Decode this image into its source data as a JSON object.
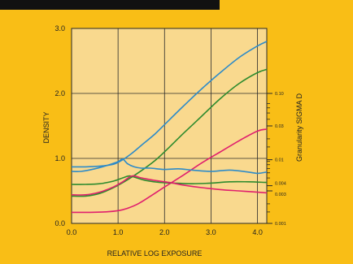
{
  "colors": {
    "panel": "#F9BE16",
    "plot_bg": "#F9D98E",
    "grid": "#2a2a2a",
    "corner": "#111111",
    "blue": "#2E8BC8",
    "green": "#2E8B2E",
    "magenta": "#E0206E"
  },
  "chart_data": {
    "type": "line",
    "title": "",
    "xlabel": "RELATIVE LOG EXPOSURE",
    "ylabel": "DENSITY",
    "y2label": "Granularity SIGMA D",
    "xlim": [
      0,
      4.2
    ],
    "ylim": [
      0,
      3.0
    ],
    "grid": true,
    "x_ticks": [
      0,
      1,
      2,
      3,
      4
    ],
    "x_tick_labels": [
      "0.0",
      "1.0",
      "2.0",
      "3.0",
      "4.0"
    ],
    "y_ticks": [
      0,
      1,
      2,
      3
    ],
    "y_tick_labels": [
      "0.0",
      "1.0",
      "2.0",
      "3.0"
    ],
    "y2_scale": "log",
    "y2_ticks": [
      0.001,
      0.003,
      0.004,
      0.01,
      0.03,
      0.1
    ],
    "y2_tick_labels": [
      "0.001",
      "0.003",
      "0.004",
      "0.01",
      "0.03",
      "0.10"
    ],
    "y2_positions": [
      0.0,
      0.5,
      0.58,
      0.98,
      1.5,
      2.0
    ],
    "series": [
      {
        "group": "density",
        "color": "blue",
        "x": [
          0,
          0.3,
          0.6,
          0.9,
          1.1,
          1.3,
          1.5,
          1.8,
          2.0,
          2.4,
          2.8,
          3.2,
          3.6,
          4.0,
          4.2
        ],
        "y": [
          0.87,
          0.87,
          0.88,
          0.91,
          0.98,
          1.08,
          1.2,
          1.38,
          1.52,
          1.8,
          2.07,
          2.32,
          2.55,
          2.73,
          2.8
        ]
      },
      {
        "group": "density",
        "color": "green",
        "x": [
          0,
          0.3,
          0.6,
          0.9,
          1.2,
          1.5,
          1.8,
          2.1,
          2.4,
          2.8,
          3.2,
          3.6,
          4.0,
          4.2
        ],
        "y": [
          0.42,
          0.42,
          0.46,
          0.55,
          0.67,
          0.81,
          0.97,
          1.17,
          1.38,
          1.65,
          1.92,
          2.15,
          2.32,
          2.37
        ]
      },
      {
        "group": "density",
        "color": "magenta",
        "x": [
          0,
          0.4,
          0.8,
          1.1,
          1.4,
          1.7,
          2.0,
          2.4,
          2.8,
          3.2,
          3.6,
          4.0,
          4.2
        ],
        "y": [
          0.17,
          0.17,
          0.18,
          0.21,
          0.29,
          0.42,
          0.56,
          0.74,
          0.93,
          1.1,
          1.27,
          1.42,
          1.45
        ]
      },
      {
        "group": "granularity",
        "color": "blue",
        "x": [
          0,
          0.2,
          0.5,
          0.8,
          1.0,
          1.1,
          1.2,
          1.35,
          1.5,
          1.7,
          2.0,
          2.3,
          2.6,
          3.0,
          3.4,
          3.8,
          4.0,
          4.2
        ],
        "y": [
          0.8,
          0.8,
          0.84,
          0.9,
          0.95,
          0.99,
          0.92,
          0.87,
          0.85,
          0.85,
          0.83,
          0.84,
          0.82,
          0.8,
          0.82,
          0.79,
          0.77,
          0.79
        ]
      },
      {
        "group": "granularity",
        "color": "green",
        "x": [
          0,
          0.3,
          0.6,
          0.9,
          1.1,
          1.25,
          1.4,
          1.6,
          1.9,
          2.2,
          2.6,
          3.0,
          3.4,
          3.8,
          4.2
        ],
        "y": [
          0.6,
          0.6,
          0.61,
          0.65,
          0.7,
          0.73,
          0.7,
          0.66,
          0.63,
          0.62,
          0.61,
          0.62,
          0.64,
          0.64,
          0.63
        ]
      },
      {
        "group": "granularity",
        "color": "magenta",
        "x": [
          0,
          0.3,
          0.6,
          0.9,
          1.1,
          1.3,
          1.5,
          1.8,
          2.1,
          2.4,
          2.8,
          3.2,
          3.6,
          4.0,
          4.2
        ],
        "y": [
          0.44,
          0.44,
          0.48,
          0.56,
          0.64,
          0.73,
          0.7,
          0.66,
          0.63,
          0.59,
          0.55,
          0.52,
          0.5,
          0.48,
          0.47
        ]
      }
    ]
  }
}
